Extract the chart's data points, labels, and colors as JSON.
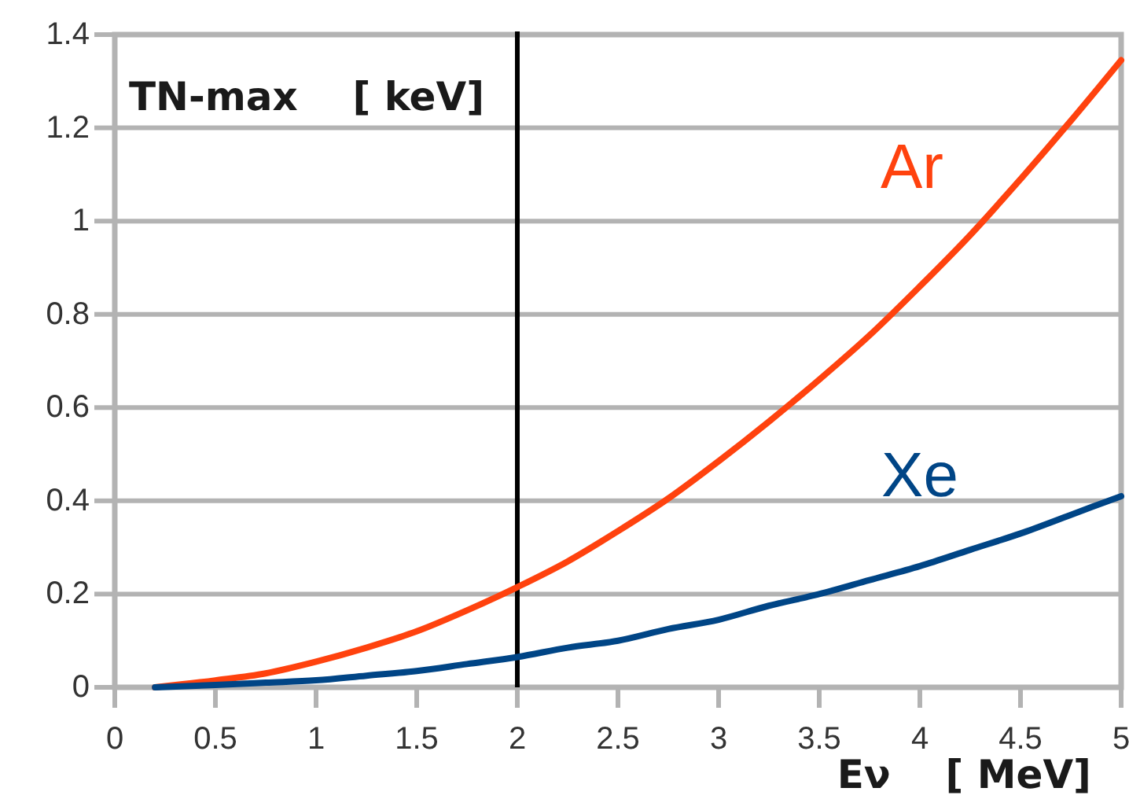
{
  "chart_data": {
    "type": "line",
    "xlabel": "Eν    [ MeV]",
    "ylabel": "TN-max    [ keV]",
    "x": [
      0.2,
      0.5,
      0.75,
      1,
      1.25,
      1.5,
      1.75,
      2,
      2.25,
      2.5,
      2.75,
      3,
      3.25,
      3.5,
      3.75,
      4,
      4.25,
      4.5,
      4.75,
      5
    ],
    "series": [
      {
        "name": "Ar",
        "color": "#ff420e",
        "values": [
          0.0,
          0.015,
          0.03,
          0.055,
          0.085,
          0.12,
          0.165,
          0.215,
          0.27,
          0.335,
          0.405,
          0.485,
          0.57,
          0.66,
          0.755,
          0.86,
          0.97,
          1.09,
          1.215,
          1.345
        ]
      },
      {
        "name": "Xe",
        "color": "#004586",
        "values": [
          0.0,
          0.005,
          0.01,
          0.015,
          0.025,
          0.035,
          0.05,
          0.065,
          0.085,
          0.1,
          0.125,
          0.145,
          0.175,
          0.2,
          0.23,
          0.26,
          0.295,
          0.33,
          0.37,
          0.41
        ]
      }
    ],
    "xlim": [
      0,
      5
    ],
    "ylim": [
      0,
      1.4
    ],
    "xticks": [
      0,
      0.5,
      1,
      1.5,
      2,
      2.5,
      3,
      3.5,
      4,
      4.5,
      5
    ],
    "yticks": [
      0,
      0.2,
      0.4,
      0.6,
      0.8,
      1,
      1.2,
      1.4
    ],
    "grid": "y",
    "ref_lines": [
      {
        "axis": "x",
        "value": 2,
        "color": "#000000"
      }
    ]
  }
}
